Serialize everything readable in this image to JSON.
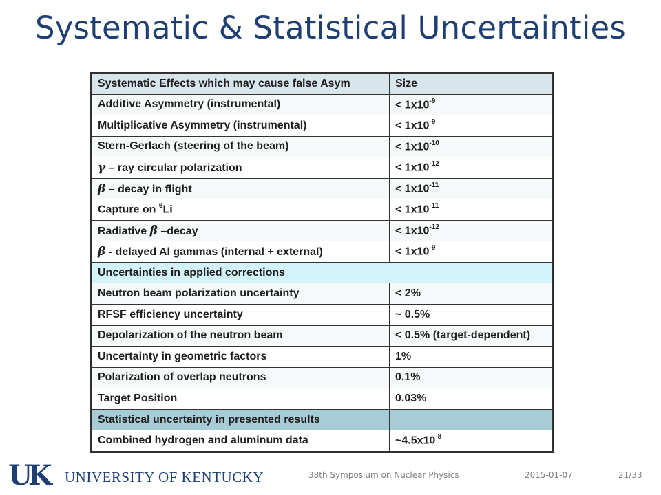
{
  "slide": {
    "title": "Systematic & Statistical Uncertainties"
  },
  "table": {
    "header": {
      "label": "Systematic Effects which may cause false Asym",
      "value": "Size"
    },
    "systematics": [
      {
        "label": "Additive Asymmetry (instrumental)",
        "base": "< 1x10",
        "exp": "-9"
      },
      {
        "label": "Multiplicative Asymmetry (instrumental)",
        "base": "< 1x10",
        "exp": "-9"
      },
      {
        "label": "Stern-Gerlach (steering of the beam)",
        "base": "< 1x10",
        "exp": "-10"
      },
      {
        "sym": "γ",
        "label": " – ray circular polarization",
        "base": "< 1x10",
        "exp": "-12"
      },
      {
        "sym": "β",
        "label": " – decay in flight",
        "base": "< 1x10",
        "exp": "-11"
      },
      {
        "pre": "Capture on ",
        "sup": "6",
        "label": "Li",
        "base": "< 1x10",
        "exp": "-11"
      },
      {
        "pre": "Radiative ",
        "sym": "β",
        "label": " –decay",
        "base": "< 1x10",
        "exp": "-12"
      },
      {
        "sym": "β",
        "label": " - delayed Al gammas (internal + external)",
        "base": "< 1x10",
        "exp": "-9"
      }
    ],
    "corrections_header": "Uncertainties in applied corrections",
    "corrections": [
      {
        "label": "Neutron beam polarization uncertainty",
        "value": "< 2%"
      },
      {
        "label": "RFSF efficiency uncertainty",
        "value": "~ 0.5%"
      },
      {
        "label": "Depolarization of the neutron beam",
        "value": "< 0.5% (target-dependent)"
      },
      {
        "label": "Uncertainty in geometric factors",
        "value": "1%"
      },
      {
        "label": "Polarization of overlap neutrons",
        "value": "0.1%"
      },
      {
        "label": "Target Position",
        "value": "0.03%"
      }
    ],
    "statistical_header": "Statistical uncertainty in presented results",
    "statistical": {
      "label": "Combined hydrogen and aluminum data",
      "base": "~4.5x10",
      "exp": "-8"
    }
  },
  "footer": {
    "logo_mark": "UK",
    "university": "UNIVERSITY OF KENTUCKY",
    "conference": "38th Symposium on Nuclear Physics",
    "date": "2015-01-07",
    "page": "21/33"
  },
  "colors": {
    "title": "#1f3f73",
    "header_bg": "#d8e6ec",
    "section_bg": "#d3f2fa",
    "statistical_bg": "#a8ccd6"
  }
}
